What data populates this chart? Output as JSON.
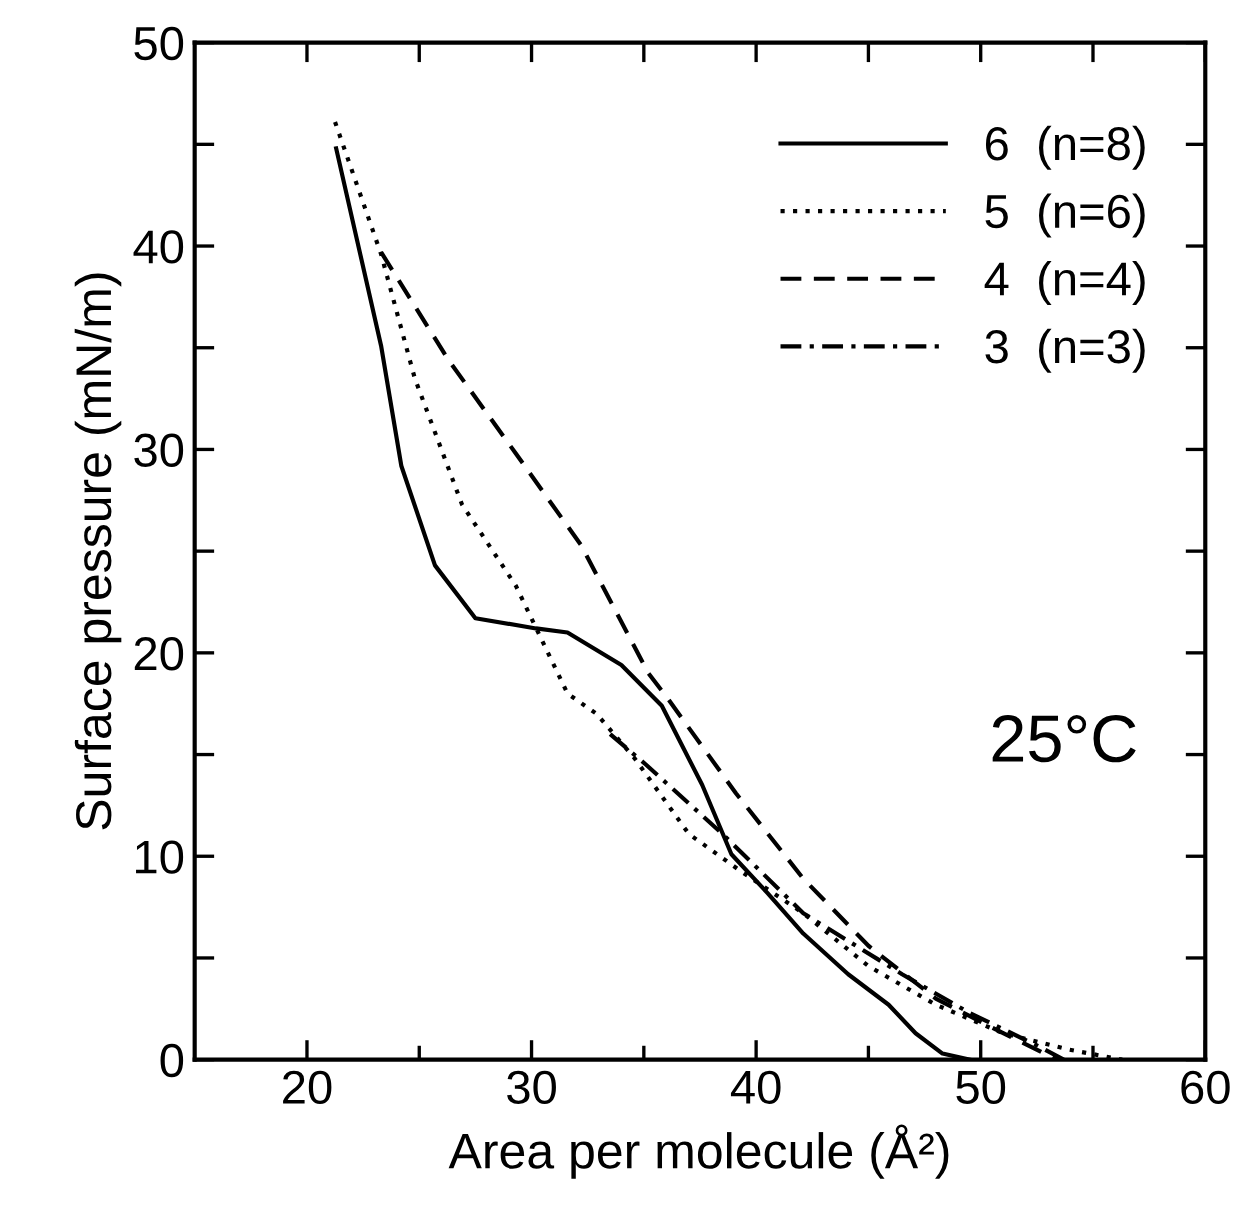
{
  "chart_data": {
    "type": "line",
    "xlabel": "Area per molecule (Å²)",
    "ylabel": "Surface pressure (mN/m)",
    "xlim": [
      15,
      60
    ],
    "ylim": [
      0,
      50
    ],
    "xticks": [
      20,
      {
        "value": 25,
        "label": null
      },
      30,
      {
        "value": 35,
        "label": null
      },
      40,
      {
        "value": 45,
        "label": null
      },
      50,
      {
        "value": 55,
        "label": null
      },
      60
    ],
    "yticks": [
      0,
      {
        "value": 5,
        "label": null
      },
      10,
      {
        "value": 15,
        "label": null
      },
      20,
      {
        "value": 25,
        "label": null
      },
      30,
      {
        "value": 35,
        "label": null
      },
      40,
      {
        "value": 45,
        "label": null
      },
      50
    ],
    "legend": "top right",
    "grid": false,
    "marker": "none",
    "annotations": [
      "25°C"
    ],
    "series": [
      {
        "name": "6  (n=8)",
        "color": "#000000",
        "line_style": "solid",
        "x": [
          21.3,
          23.3,
          24.2,
          25.7,
          27.5,
          30.2,
          31.6,
          34.0,
          35.8,
          37.6,
          38.9,
          40.5,
          42.1,
          44.1,
          45.9,
          47.1,
          48.3,
          49.5
        ],
        "values": [
          44.8,
          35.1,
          29.2,
          24.3,
          21.7,
          21.2,
          21.0,
          19.4,
          17.4,
          13.5,
          10.1,
          8.2,
          6.2,
          4.2,
          2.7,
          1.3,
          0.3,
          0
        ]
      },
      {
        "name": "5  (n=6)",
        "color": "#000000",
        "line_style": "dotted",
        "x": [
          21.25,
          23.3,
          24.8,
          26.9,
          29.3,
          31.6,
          32.9,
          34.6,
          37.0,
          39.4,
          42.1,
          45.0,
          48.0,
          51.0,
          53.9,
          56.3
        ],
        "values": [
          46.1,
          39.6,
          33.5,
          27.3,
          23.3,
          18.0,
          17.0,
          14.8,
          11.1,
          9.2,
          7.2,
          4.6,
          2.7,
          1.3,
          0.5,
          0
        ]
      },
      {
        "name": "4  (n=4)",
        "color": "#000000",
        "line_style": "dashed",
        "x": [
          23.3,
          26.3,
          29.3,
          32.2,
          35.2,
          36.1,
          39.1,
          42.1,
          45.0,
          48.0,
          51.0,
          53.4
        ],
        "values": [
          39.7,
          34.4,
          29.8,
          25.3,
          19.0,
          17.7,
          13.1,
          8.9,
          5.6,
          3.0,
          1.3,
          0
        ]
      },
      {
        "name": "3  (n=3)",
        "color": "#000000",
        "line_style": "dashdot",
        "x": [
          33.5,
          35.1,
          38.5,
          42.1,
          46.5,
          49.5,
          52.5,
          53.7
        ],
        "values": [
          16.0,
          14.5,
          11.1,
          7.2,
          4.2,
          2.3,
          0.7,
          0
        ]
      }
    ]
  }
}
